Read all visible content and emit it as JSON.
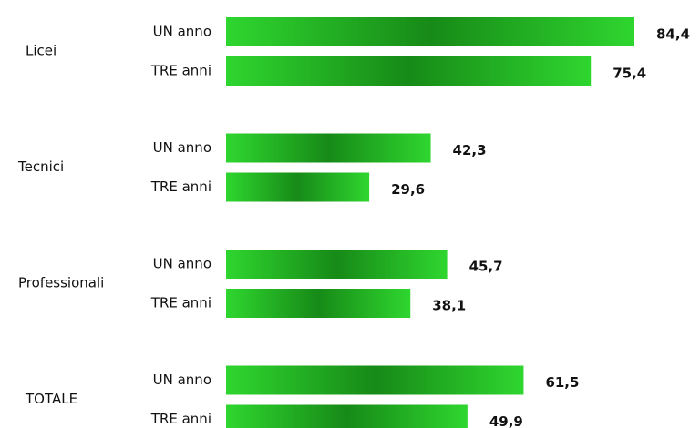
{
  "chart_data": {
    "type": "bar",
    "orientation": "horizontal",
    "categories": [
      "Licei",
      "Tecnici",
      "Professionali",
      "TOTALE"
    ],
    "series": [
      {
        "name": "UN anno",
        "color": "#2fd62f",
        "values": [
          84.4,
          42.3,
          45.7,
          61.5
        ],
        "value_labels": [
          "84,4",
          "42,3",
          "45,7",
          "61,5"
        ]
      },
      {
        "name": "TRE anni",
        "color": "#2fd62f",
        "values": [
          75.4,
          29.6,
          38.1,
          49.9
        ],
        "value_labels": [
          "75,4",
          "29,6",
          "38,1",
          "49,9"
        ]
      }
    ]
  }
}
